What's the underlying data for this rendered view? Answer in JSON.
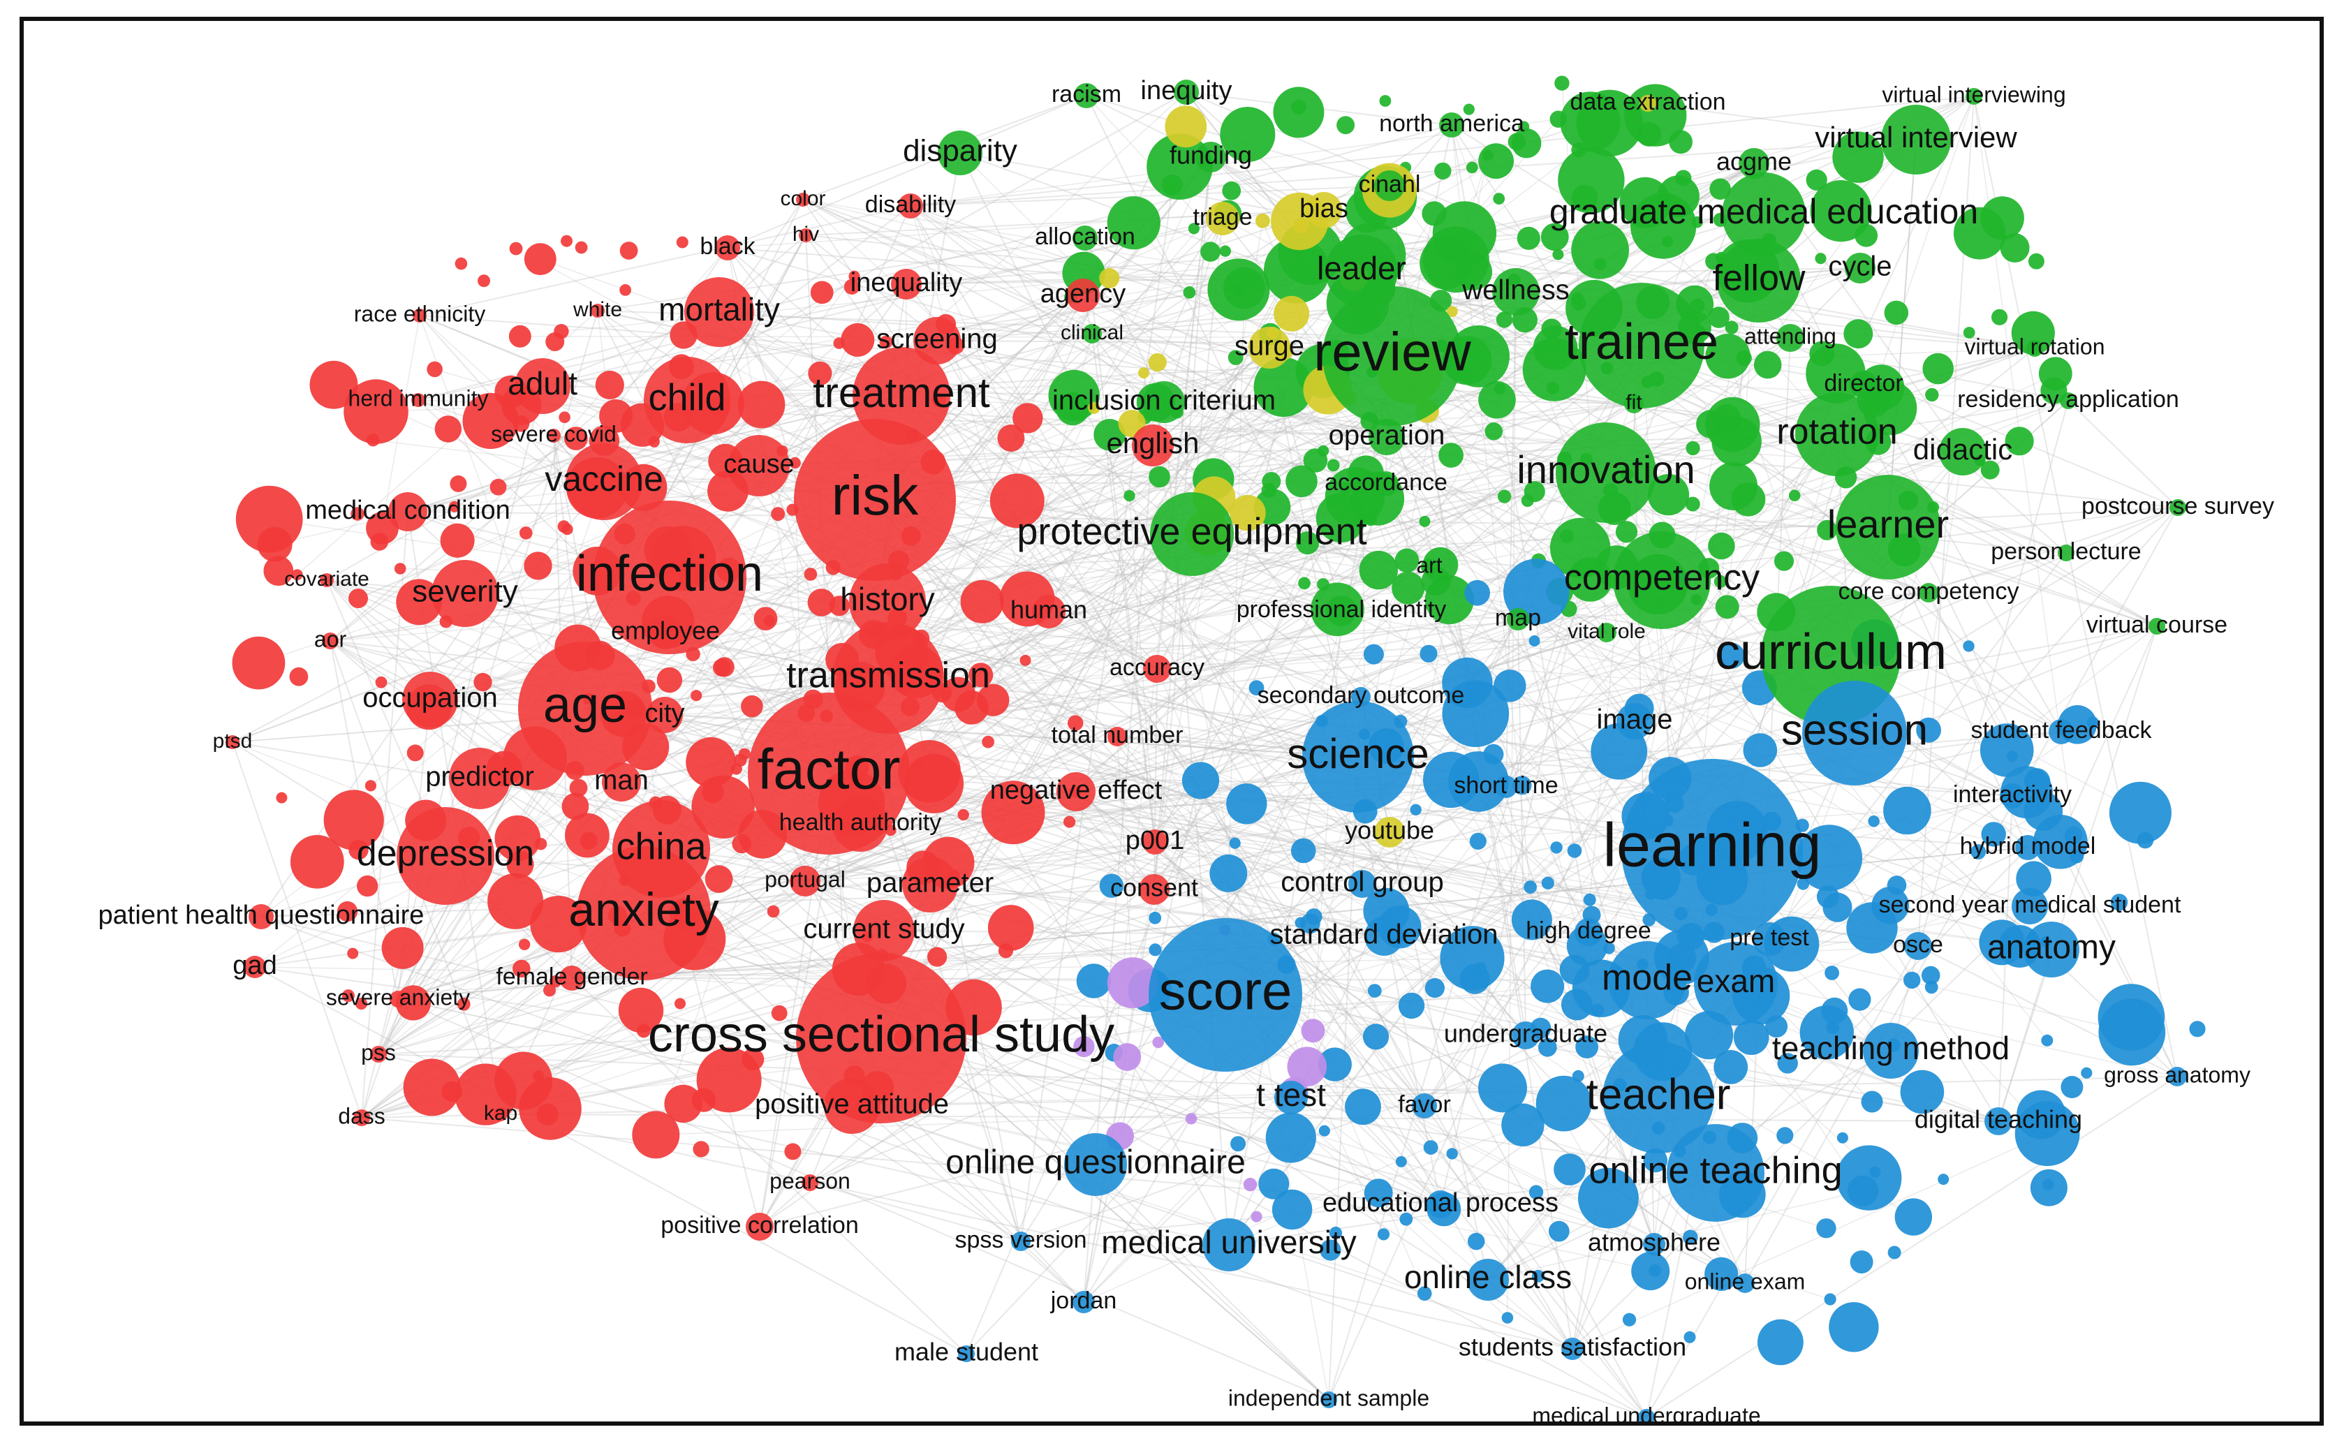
{
  "colors": {
    "red": "#f23a3a",
    "green": "#1fb52b",
    "blue": "#1f8fd6",
    "yellow": "#d6cc2a",
    "purple": "#c08ee8",
    "edge": "#bdbdbd",
    "border": "#111111"
  },
  "nodes": [
    {
      "label": "risk",
      "cluster": "red"
    },
    {
      "label": "infection",
      "cluster": "red"
    },
    {
      "label": "factor",
      "cluster": "red"
    },
    {
      "label": "age",
      "cluster": "red"
    },
    {
      "label": "anxiety",
      "cluster": "red"
    },
    {
      "label": "cross sectional study",
      "cluster": "red"
    },
    {
      "label": "treatment",
      "cluster": "red"
    },
    {
      "label": "child",
      "cluster": "red"
    },
    {
      "label": "transmission",
      "cluster": "red"
    },
    {
      "label": "depression",
      "cluster": "red"
    },
    {
      "label": "china",
      "cluster": "red"
    },
    {
      "label": "mortality",
      "cluster": "red"
    },
    {
      "label": "vaccine",
      "cluster": "red"
    },
    {
      "label": "adult",
      "cluster": "red"
    },
    {
      "label": "severity",
      "cluster": "red"
    },
    {
      "label": "history",
      "cluster": "red"
    },
    {
      "label": "cause",
      "cluster": "red"
    },
    {
      "label": "predictor",
      "cluster": "red"
    },
    {
      "label": "occupation",
      "cluster": "red"
    },
    {
      "label": "city",
      "cluster": "red"
    },
    {
      "label": "man",
      "cluster": "red"
    },
    {
      "label": "employee",
      "cluster": "red"
    },
    {
      "label": "screening",
      "cluster": "red"
    },
    {
      "label": "inequality",
      "cluster": "red"
    },
    {
      "label": "disability",
      "cluster": "red"
    },
    {
      "label": "color",
      "cluster": "red"
    },
    {
      "label": "hiv",
      "cluster": "red"
    },
    {
      "label": "black",
      "cluster": "red"
    },
    {
      "label": "white",
      "cluster": "red"
    },
    {
      "label": "race ethnicity",
      "cluster": "red"
    },
    {
      "label": "herd immunity",
      "cluster": "red"
    },
    {
      "label": "severe covid",
      "cluster": "red"
    },
    {
      "label": "medical condition",
      "cluster": "red"
    },
    {
      "label": "covariate",
      "cluster": "red"
    },
    {
      "label": "aor",
      "cluster": "red"
    },
    {
      "label": "ptsd",
      "cluster": "red"
    },
    {
      "label": "patient health questionnaire",
      "cluster": "red"
    },
    {
      "label": "gad",
      "cluster": "red"
    },
    {
      "label": "severe anxiety",
      "cluster": "red"
    },
    {
      "label": "female gender",
      "cluster": "red"
    },
    {
      "label": "pss",
      "cluster": "red"
    },
    {
      "label": "dass",
      "cluster": "red"
    },
    {
      "label": "kap",
      "cluster": "red"
    },
    {
      "label": "health authority",
      "cluster": "red"
    },
    {
      "label": "portugal",
      "cluster": "red"
    },
    {
      "label": "parameter",
      "cluster": "red"
    },
    {
      "label": "current study",
      "cluster": "red"
    },
    {
      "label": "positive attitude",
      "cluster": "red"
    },
    {
      "label": "pearson",
      "cluster": "red"
    },
    {
      "label": "positive correlation",
      "cluster": "red"
    },
    {
      "label": "human",
      "cluster": "red"
    },
    {
      "label": "accuracy",
      "cluster": "red"
    },
    {
      "label": "total number",
      "cluster": "red"
    },
    {
      "label": "negative effect",
      "cluster": "red"
    },
    {
      "label": "p001",
      "cluster": "red"
    },
    {
      "label": "consent",
      "cluster": "red"
    },
    {
      "label": "agency",
      "cluster": "red"
    },
    {
      "label": "english",
      "cluster": "red"
    },
    {
      "label": "review",
      "cluster": "green"
    },
    {
      "label": "trainee",
      "cluster": "green"
    },
    {
      "label": "curriculum",
      "cluster": "green"
    },
    {
      "label": "innovation",
      "cluster": "green"
    },
    {
      "label": "competency",
      "cluster": "green"
    },
    {
      "label": "learner",
      "cluster": "green"
    },
    {
      "label": "rotation",
      "cluster": "green"
    },
    {
      "label": "fellow",
      "cluster": "green"
    },
    {
      "label": "graduate medical education",
      "cluster": "green"
    },
    {
      "label": "leader",
      "cluster": "green"
    },
    {
      "label": "wellness",
      "cluster": "green"
    },
    {
      "label": "protective equipment",
      "cluster": "green"
    },
    {
      "label": "didactic",
      "cluster": "green"
    },
    {
      "label": "cycle",
      "cluster": "green"
    },
    {
      "label": "acgme",
      "cluster": "green"
    },
    {
      "label": "virtual interview",
      "cluster": "green"
    },
    {
      "label": "virtual interviewing",
      "cluster": "green"
    },
    {
      "label": "north america",
      "cluster": "green"
    },
    {
      "label": "racism",
      "cluster": "green"
    },
    {
      "label": "inequity",
      "cluster": "green"
    },
    {
      "label": "disparity",
      "cluster": "green"
    },
    {
      "label": "funding",
      "cluster": "green"
    },
    {
      "label": "allocation",
      "cluster": "green"
    },
    {
      "label": "clinical",
      "cluster": "green"
    },
    {
      "label": "cinahl",
      "cluster": "green"
    },
    {
      "label": "attending",
      "cluster": "green"
    },
    {
      "label": "director",
      "cluster": "green"
    },
    {
      "label": "fit",
      "cluster": "green"
    },
    {
      "label": "virtual rotation",
      "cluster": "green"
    },
    {
      "label": "residency application",
      "cluster": "green"
    },
    {
      "label": "postcourse survey",
      "cluster": "green"
    },
    {
      "label": "person lecture",
      "cluster": "green"
    },
    {
      "label": "core competency",
      "cluster": "green"
    },
    {
      "label": "virtual course",
      "cluster": "green"
    },
    {
      "label": "inclusion criterium",
      "cluster": "green"
    },
    {
      "label": "operation",
      "cluster": "green"
    },
    {
      "label": "accordance",
      "cluster": "green"
    },
    {
      "label": "art",
      "cluster": "green"
    },
    {
      "label": "professional identity",
      "cluster": "green"
    },
    {
      "label": "map",
      "cluster": "green"
    },
    {
      "label": "vital role",
      "cluster": "green"
    },
    {
      "label": "data extraction",
      "cluster": "yellow"
    },
    {
      "label": "triage",
      "cluster": "yellow"
    },
    {
      "label": "bias",
      "cluster": "yellow"
    },
    {
      "label": "surge",
      "cluster": "yellow"
    },
    {
      "label": "youtube",
      "cluster": "yellow"
    },
    {
      "label": "learning",
      "cluster": "blue"
    },
    {
      "label": "score",
      "cluster": "blue"
    },
    {
      "label": "science",
      "cluster": "blue"
    },
    {
      "label": "session",
      "cluster": "blue"
    },
    {
      "label": "teacher",
      "cluster": "blue"
    },
    {
      "label": "online teaching",
      "cluster": "blue"
    },
    {
      "label": "mode",
      "cluster": "blue"
    },
    {
      "label": "exam",
      "cluster": "blue"
    },
    {
      "label": "anatomy",
      "cluster": "blue"
    },
    {
      "label": "teaching method",
      "cluster": "blue"
    },
    {
      "label": "online questionnaire",
      "cluster": "blue"
    },
    {
      "label": "medical university",
      "cluster": "blue"
    },
    {
      "label": "online class",
      "cluster": "blue"
    },
    {
      "label": "image",
      "cluster": "blue"
    },
    {
      "label": "short time",
      "cluster": "blue"
    },
    {
      "label": "secondary outcome",
      "cluster": "blue"
    },
    {
      "label": "control group",
      "cluster": "blue"
    },
    {
      "label": "standard deviation",
      "cluster": "blue"
    },
    {
      "label": "high degree",
      "cluster": "blue"
    },
    {
      "label": "pre test",
      "cluster": "blue"
    },
    {
      "label": "undergraduate",
      "cluster": "blue"
    },
    {
      "label": "t test",
      "cluster": "blue"
    },
    {
      "label": "favor",
      "cluster": "blue"
    },
    {
      "label": "educational process",
      "cluster": "blue"
    },
    {
      "label": "atmosphere",
      "cluster": "blue"
    },
    {
      "label": "online exam",
      "cluster": "blue"
    },
    {
      "label": "students satisfaction",
      "cluster": "blue"
    },
    {
      "label": "independent sample",
      "cluster": "blue"
    },
    {
      "label": "medical undergraduate",
      "cluster": "blue"
    },
    {
      "label": "male student",
      "cluster": "blue"
    },
    {
      "label": "jordan",
      "cluster": "blue"
    },
    {
      "label": "spss version",
      "cluster": "blue"
    },
    {
      "label": "student feedback",
      "cluster": "blue"
    },
    {
      "label": "interactivity",
      "cluster": "blue"
    },
    {
      "label": "hybrid model",
      "cluster": "blue"
    },
    {
      "label": "second year medical student",
      "cluster": "blue"
    },
    {
      "label": "osce",
      "cluster": "blue"
    },
    {
      "label": "gross anatomy",
      "cluster": "blue"
    },
    {
      "label": "digital teaching",
      "cluster": "blue"
    }
  ]
}
